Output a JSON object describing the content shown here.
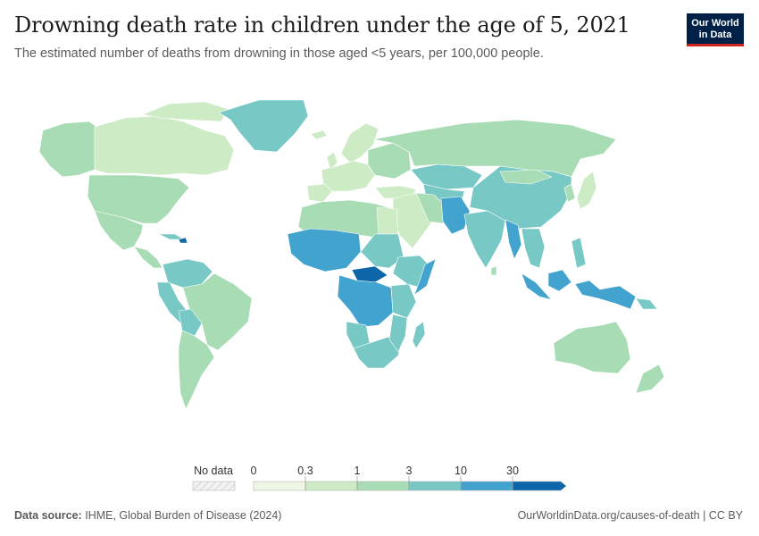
{
  "header": {
    "title": "Drowning death rate in children under the age of 5, 2021",
    "subtitle": "The estimated number of deaths from drowning in those aged <5 years, per 100,000 people."
  },
  "logo": {
    "line1": "Our World",
    "line2": "in Data"
  },
  "legend": {
    "no_data_label": "No data",
    "bins": [
      {
        "from": "0",
        "to": "0.3",
        "color": "#eef7e6"
      },
      {
        "from": "0.3",
        "to": "1",
        "color": "#cdebc4"
      },
      {
        "from": "1",
        "to": "3",
        "color": "#a8dcb5"
      },
      {
        "from": "3",
        "to": "10",
        "color": "#78c8c6"
      },
      {
        "from": "10",
        "to": "30",
        "color": "#42a3cf"
      },
      {
        "from": "30",
        "to": "",
        "color": "#0c66a8"
      }
    ],
    "tick_labels": [
      "0",
      "0.3",
      "1",
      "3",
      "10",
      "30"
    ]
  },
  "colors": {
    "ocean": "#ffffff",
    "border": "#ffffff",
    "very_low": "#eef7e6",
    "low": "#cdebc4",
    "mid_low": "#a8dcb5",
    "mid": "#78c8c6",
    "high": "#42a3cf",
    "very_high": "#0c66a8"
  },
  "footer": {
    "source_label": "Data source:",
    "source_text": "IHME, Global Burden of Disease (2024)",
    "url_text": "OurWorldinData.org/causes-of-death | CC BY"
  }
}
